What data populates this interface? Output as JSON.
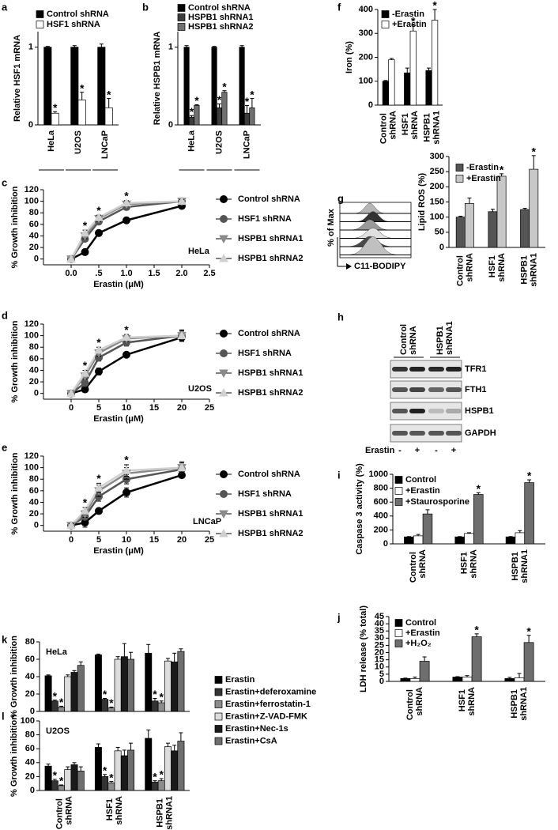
{
  "chart_data": [
    {
      "type": "bar",
      "panel": "a",
      "ylabel": "Relative HSF1 mRNA",
      "categories": [
        "HeLa",
        "U2OS",
        "LNCaP"
      ],
      "series": [
        {
          "name": "Control shRNA",
          "color": "#000000",
          "values": [
            1,
            1,
            1
          ],
          "errors": [
            0.01,
            0.02,
            0.04
          ]
        },
        {
          "name": "HSF1 shRNA",
          "color": "#ffffff",
          "values": [
            0.15,
            0.32,
            0.22
          ],
          "errors": [
            0.02,
            0.1,
            0.12
          ],
          "annotations": [
            "*",
            "*",
            "*"
          ]
        }
      ],
      "ylim": [
        0,
        1.2
      ],
      "yticks": [
        0,
        1
      ],
      "legend": "top-left"
    },
    {
      "type": "bar",
      "panel": "b",
      "ylabel": "Relative HSPB1 mRNA",
      "categories": [
        "HeLa",
        "U2OS",
        "LNCaP"
      ],
      "series": [
        {
          "name": "Control shRNA",
          "color": "#000000",
          "values": [
            1,
            1,
            1
          ],
          "errors": [
            0.02,
            0.01,
            0.02
          ]
        },
        {
          "name": "HSPB1 shRNA1",
          "color": "#3c3c3c",
          "values": [
            0.1,
            0.22,
            0.15
          ],
          "errors": [
            0.02,
            0.05,
            0.1
          ],
          "annotations": [
            "*",
            "*",
            "*"
          ]
        },
        {
          "name": "HSPB1 shRNA2",
          "color": "#707070",
          "values": [
            0.25,
            0.42,
            0.22
          ],
          "errors": [
            0.01,
            0.02,
            0.12
          ],
          "annotations": [
            "*",
            "*",
            "*"
          ]
        }
      ],
      "ylim": [
        0,
        1.2
      ],
      "yticks": [
        0,
        1
      ],
      "legend": "top-left"
    },
    {
      "type": "line",
      "panel": "c",
      "xlabel": "Erastin (μM)",
      "ylabel": "% Growth inhibition",
      "label": "HeLa",
      "x": [
        0,
        0.25,
        0.5,
        1,
        2
      ],
      "series": [
        {
          "name": "Control shRNA",
          "color": "#000000",
          "marker": "circle",
          "values": [
            0,
            12,
            45,
            67,
            92
          ],
          "errors": [
            2,
            3,
            4,
            5,
            4
          ]
        },
        {
          "name": "HSF1 shRNA",
          "color": "#555555",
          "marker": "circle",
          "values": [
            0,
            35,
            65,
            90,
            100
          ],
          "errors": [
            2,
            4,
            5,
            5,
            3
          ]
        },
        {
          "name": "HSPB1 shRNA1",
          "color": "#8a8a8a",
          "marker": "triangle-down",
          "values": [
            0,
            40,
            70,
            95,
            100
          ],
          "errors": [
            2,
            5,
            5,
            4,
            3
          ]
        },
        {
          "name": "HSPB1 shRNA2",
          "color": "#d0d0d0",
          "marker": "triangle-up",
          "values": [
            0,
            45,
            72,
            97,
            100
          ],
          "errors": [
            2,
            5,
            4,
            4,
            3
          ]
        }
      ],
      "xlim": [
        -0.5,
        2.5
      ],
      "xticks": [
        {
          "value": 0,
          "label": "0.0"
        },
        {
          "value": 0.5,
          "label": ".5"
        },
        {
          "value": 1,
          "label": "1.0"
        },
        {
          "value": 1.5,
          "label": "1.5"
        },
        {
          "value": 2,
          "label": "2.0"
        },
        {
          "value": 2.5,
          "label": "2.5"
        }
      ],
      "ylim": [
        -10,
        120
      ],
      "yticks": [
        0,
        20,
        40,
        60,
        80,
        100,
        120
      ],
      "annotations": [
        {
          "text": "*",
          "x": 0.25
        },
        {
          "text": "*",
          "x": 0.5
        },
        {
          "text": "*",
          "x": 1
        }
      ],
      "legend": "right"
    },
    {
      "type": "line",
      "panel": "d",
      "xlabel": "Erastin (μM)",
      "ylabel": "% Growth inhibition",
      "label": "U2OS",
      "x": [
        0,
        2.5,
        5,
        10,
        20
      ],
      "series": [
        {
          "name": "Control shRNA",
          "color": "#000000",
          "marker": "circle",
          "values": [
            0,
            7,
            38,
            67,
            97
          ],
          "errors": [
            2,
            4,
            6,
            4,
            6
          ]
        },
        {
          "name": "HSF1 shRNA",
          "color": "#555555",
          "marker": "circle",
          "values": [
            0,
            18,
            62,
            88,
            100
          ],
          "errors": [
            2,
            5,
            6,
            6,
            8
          ]
        },
        {
          "name": "HSPB1 shRNA1",
          "color": "#8a8a8a",
          "marker": "triangle-down",
          "values": [
            0,
            30,
            70,
            95,
            100
          ],
          "errors": [
            2,
            5,
            6,
            5,
            8
          ]
        },
        {
          "name": "HSPB1 shRNA2",
          "color": "#d0d0d0",
          "marker": "triangle-up",
          "values": [
            0,
            35,
            75,
            97,
            100
          ],
          "errors": [
            2,
            5,
            5,
            5,
            10
          ]
        }
      ],
      "xlim": [
        -5,
        25
      ],
      "xticks": [
        0,
        5,
        10,
        15,
        20,
        25
      ],
      "ylim": [
        -10,
        120
      ],
      "yticks": [
        0,
        20,
        40,
        60,
        80,
        100,
        120
      ],
      "annotations": [
        {
          "text": "*",
          "x": 2.5
        },
        {
          "text": "*",
          "x": 5
        },
        {
          "text": "*",
          "x": 10
        }
      ],
      "legend": "right"
    },
    {
      "type": "line",
      "panel": "e",
      "xlabel": "Erastin (μM)",
      "ylabel": "% Growth inhibition",
      "label": "LNCaP",
      "x": [
        0,
        2.5,
        5,
        10,
        20
      ],
      "series": [
        {
          "name": "Control shRNA",
          "color": "#000000",
          "marker": "circle",
          "values": [
            0,
            5,
            25,
            57,
            87
          ],
          "errors": [
            2,
            8,
            4,
            8,
            4
          ]
        },
        {
          "name": "HSF1 shRNA",
          "color": "#555555",
          "marker": "circle",
          "values": [
            0,
            15,
            50,
            80,
            97
          ],
          "errors": [
            2,
            6,
            8,
            8,
            6
          ]
        },
        {
          "name": "HSPB1 shRNA1",
          "color": "#8a8a8a",
          "marker": "triangle-down",
          "values": [
            0,
            20,
            60,
            90,
            100
          ],
          "errors": [
            3,
            6,
            10,
            10,
            8
          ]
        },
        {
          "name": "HSPB1 shRNA2",
          "color": "#d0d0d0",
          "marker": "triangle-up",
          "values": [
            0,
            25,
            65,
            95,
            100
          ],
          "errors": [
            3,
            6,
            8,
            10,
            10
          ]
        }
      ],
      "xlim": [
        -5,
        25
      ],
      "xticks": [
        0,
        5,
        10,
        15,
        20,
        25
      ],
      "ylim": [
        -10,
        120
      ],
      "yticks": [
        0,
        20,
        40,
        60,
        80,
        100,
        120
      ],
      "annotations": [
        {
          "text": "*",
          "x": 2.5
        },
        {
          "text": "*",
          "x": 5
        },
        {
          "text": "*",
          "x": 10
        }
      ],
      "legend": "right"
    },
    {
      "type": "bar",
      "panel": "f",
      "ylabel": "Iron (%)",
      "categories": [
        "Control shRNA",
        "HSF1 shRNA",
        "HSPB1 shRNA1"
      ],
      "series": [
        {
          "name": "-Erastin",
          "color": "#000000",
          "values": [
            100,
            135,
            145
          ],
          "errors": [
            3,
            20,
            10
          ]
        },
        {
          "name": "+Erastin",
          "color": "#ffffff",
          "values": [
            190,
            310,
            355
          ],
          "errors": [
            5,
            25,
            45
          ],
          "annotations": [
            null,
            "*",
            "*"
          ]
        }
      ],
      "ylim": [
        0,
        400
      ],
      "yticks": [
        0,
        100,
        200,
        300,
        400
      ],
      "legend": "top-left"
    },
    {
      "type": "flow",
      "panel": "g",
      "ylabel": "% of Max",
      "xlabel": "C11-BODIPY"
    },
    {
      "type": "bar",
      "ylabel": "Lipid ROS (%)",
      "categories": [
        "Control shRNA",
        "HSF1 shRNA",
        "HSPB1 shRNA1"
      ],
      "series": [
        {
          "name": "-Erastin",
          "color": "#555555",
          "values": [
            100,
            118,
            125
          ],
          "errors": [
            3,
            8,
            4
          ]
        },
        {
          "name": "+Erastin",
          "color": "#c8c8c8",
          "values": [
            145,
            235,
            258
          ],
          "errors": [
            18,
            8,
            45
          ],
          "annotations": [
            null,
            "*",
            "*"
          ]
        }
      ],
      "ylim": [
        0,
        300
      ],
      "yticks": [
        0,
        50,
        100,
        150,
        200,
        250,
        300
      ],
      "legend": "top-left"
    },
    {
      "type": "blot",
      "panel": "h",
      "groups": [
        "Control shRNA",
        "HSPB1 shRNA1"
      ],
      "proteins": [
        "TFR1",
        "FTH1",
        "HSPB1",
        "GAPDH"
      ],
      "treatment": "Erastin",
      "lanes": [
        "-",
        "+",
        "-",
        "+"
      ]
    },
    {
      "type": "bar",
      "panel": "i",
      "ylabel": "Caspase 3 activity (%)",
      "categories": [
        "Control shRNA",
        "HSF1 shRNA",
        "HSPB1 shRNA1"
      ],
      "series": [
        {
          "name": "Control",
          "color": "#000000",
          "values": [
            100,
            100,
            100
          ],
          "errors": [
            5,
            5,
            5
          ]
        },
        {
          "name": "+Erastin",
          "color": "#ffffff",
          "values": [
            115,
            150,
            160
          ],
          "errors": [
            20,
            10,
            30
          ]
        },
        {
          "name": "+Staurosporine",
          "color": "#6e6e6e",
          "values": [
            430,
            710,
            880
          ],
          "errors": [
            60,
            25,
            40
          ],
          "annotations": [
            null,
            "*",
            "*"
          ]
        }
      ],
      "ylim": [
        0,
        1000
      ],
      "yticks": [
        0,
        200,
        400,
        600,
        800,
        1000
      ],
      "legend": "top-left"
    },
    {
      "type": "bar",
      "panel": "j",
      "ylabel": "LDH release (% total)",
      "categories": [
        "Control shRNA",
        "HSF1 shRNA",
        "HSPB1 shRNA1"
      ],
      "series": [
        {
          "name": "Control",
          "color": "#000000",
          "values": [
            2,
            3,
            2
          ],
          "errors": [
            0.3,
            0.3,
            0.8
          ]
        },
        {
          "name": "+Erastin",
          "color": "#ffffff",
          "values": [
            2,
            3,
            2.5
          ],
          "errors": [
            1,
            1,
            3
          ]
        },
        {
          "name": "+H₂O₂",
          "color": "#6e6e6e",
          "values": [
            14,
            31,
            27
          ],
          "errors": [
            3,
            2,
            5
          ],
          "annotations": [
            null,
            "*",
            "*"
          ]
        }
      ],
      "ylim": [
        0,
        45
      ],
      "yticks": [
        0,
        5,
        10,
        15,
        20,
        25,
        30,
        35,
        40,
        45
      ],
      "legend": "top-left"
    },
    {
      "type": "bar",
      "panel": "k",
      "ylabel": "% Growth inhibition",
      "label": "HeLa",
      "categories": [
        null,
        null,
        null
      ],
      "series": [
        {
          "name": "Erastin",
          "color": "#000000",
          "values": [
            41,
            65,
            67
          ],
          "errors": [
            1,
            1,
            10
          ]
        },
        {
          "name": "Erastin+deferoxamine",
          "color": "#333333",
          "values": [
            12,
            14,
            12
          ],
          "errors": [
            1,
            1,
            3
          ],
          "annotations": [
            "*",
            "*",
            "*"
          ]
        },
        {
          "name": "Erastin+ferrostatin-1",
          "color": "#8c8c8c",
          "values": [
            5,
            4,
            10
          ],
          "errors": [
            1,
            1,
            2
          ],
          "annotations": [
            "*",
            "*",
            "*"
          ]
        },
        {
          "name": "Erastin+Z-VAD-FMK",
          "color": "#dcdcdc",
          "values": [
            40,
            60,
            58
          ],
          "errors": [
            2,
            3,
            3
          ]
        },
        {
          "name": "Erastin+Nec-1s",
          "color": "#1a1a1a",
          "values": [
            45,
            63,
            57
          ],
          "errors": [
            2,
            15,
            10
          ]
        },
        {
          "name": "Erastin+CsA",
          "color": "#6e6e6e",
          "values": [
            53,
            60,
            69
          ],
          "errors": [
            4,
            8,
            3
          ]
        }
      ],
      "ylim": [
        0,
        80
      ],
      "yticks": [
        0,
        20,
        40,
        60,
        80
      ],
      "legend": "right"
    },
    {
      "type": "bar",
      "panel": "l",
      "ylabel": "% Growth inhibition",
      "label": "U2OS",
      "categories": [
        "Control shRNA",
        "HSF1 shRNA",
        "HSPB1 shRNA1"
      ],
      "series": [
        {
          "color": "#000000",
          "values": [
            35,
            62,
            75
          ],
          "errors": [
            3,
            5,
            12
          ]
        },
        {
          "color": "#333333",
          "values": [
            14,
            20,
            12
          ],
          "errors": [
            2,
            3,
            2
          ],
          "annotations": [
            "*",
            "*",
            "*"
          ]
        },
        {
          "color": "#8c8c8c",
          "values": [
            7,
            11,
            14
          ],
          "errors": [
            1,
            2,
            3
          ],
          "annotations": [
            "*",
            "*",
            "*"
          ]
        },
        {
          "color": "#dcdcdc",
          "values": [
            30,
            57,
            63
          ],
          "errors": [
            4,
            5,
            5
          ]
        },
        {
          "color": "#1a1a1a",
          "values": [
            37,
            50,
            57
          ],
          "errors": [
            3,
            8,
            8
          ]
        },
        {
          "color": "#6e6e6e",
          "values": [
            28,
            58,
            71
          ],
          "errors": [
            6,
            10,
            12
          ]
        }
      ],
      "ylim": [
        0,
        100
      ],
      "yticks": [
        0,
        20,
        40,
        60,
        80,
        100
      ]
    }
  ]
}
